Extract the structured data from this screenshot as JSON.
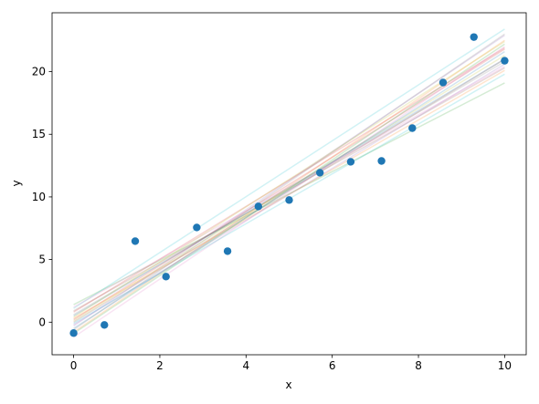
{
  "chart_data": {
    "type": "scatter",
    "xlabel": "x",
    "ylabel": "y",
    "x": [
      0,
      0.714,
      1.429,
      2.143,
      2.857,
      3.571,
      4.286,
      5,
      5.714,
      6.429,
      7.143,
      7.857,
      8.571,
      9.286,
      10
    ],
    "y": [
      -0.87,
      -0.22,
      6.47,
      3.64,
      7.56,
      5.67,
      9.24,
      9.75,
      11.93,
      12.8,
      12.87,
      15.49,
      19.13,
      22.76,
      20.87
    ],
    "color": "#1f77b4",
    "fit_x": [
      0,
      10
    ],
    "fit_lines": [
      {
        "color": "#1f77b4",
        "values": [
          0.5,
          21.0
        ]
      },
      {
        "color": "#ff7f0e",
        "values": [
          -0.8,
          22.5
        ]
      },
      {
        "color": "#2ca02c",
        "values": [
          1.4,
          19.1
        ]
      },
      {
        "color": "#d62728",
        "values": [
          0.2,
          21.8
        ]
      },
      {
        "color": "#9467bd",
        "values": [
          -0.3,
          22.9
        ]
      },
      {
        "color": "#8c564b",
        "values": [
          0.9,
          20.3
        ]
      },
      {
        "color": "#e377c2",
        "values": [
          -1.2,
          22.0
        ]
      },
      {
        "color": "#7f7f7f",
        "values": [
          0.6,
          20.8
        ]
      },
      {
        "color": "#bcbd22",
        "values": [
          0.1,
          21.3
        ]
      },
      {
        "color": "#17becf",
        "values": [
          1.1,
          23.4
        ]
      },
      {
        "color": "#1f77b4",
        "values": [
          -0.5,
          21.6
        ]
      },
      {
        "color": "#ff7f0e",
        "values": [
          0.3,
          20.1
        ]
      },
      {
        "color": "#2ca02c",
        "values": [
          -0.9,
          22.2
        ]
      },
      {
        "color": "#d62728",
        "values": [
          0.8,
          21.9
        ]
      },
      {
        "color": "#9467bd",
        "values": [
          -0.2,
          20.6
        ]
      },
      {
        "color": "#8c564b",
        "values": [
          0.0,
          21.0
        ]
      },
      {
        "color": "#e377c2",
        "values": [
          1.2,
          20.4
        ]
      },
      {
        "color": "#7f7f7f",
        "values": [
          -0.6,
          23.0
        ]
      },
      {
        "color": "#bcbd22",
        "values": [
          0.4,
          22.4
        ]
      },
      {
        "color": "#17becf",
        "values": [
          -0.1,
          19.8
        ]
      }
    ],
    "xlim": [
      -0.5,
      10.5
    ],
    "ylim": [
      -2.6,
      24.7
    ],
    "xticks": [
      0,
      2,
      4,
      6,
      8,
      10
    ],
    "yticks": [
      0,
      5,
      10,
      15,
      20
    ]
  }
}
